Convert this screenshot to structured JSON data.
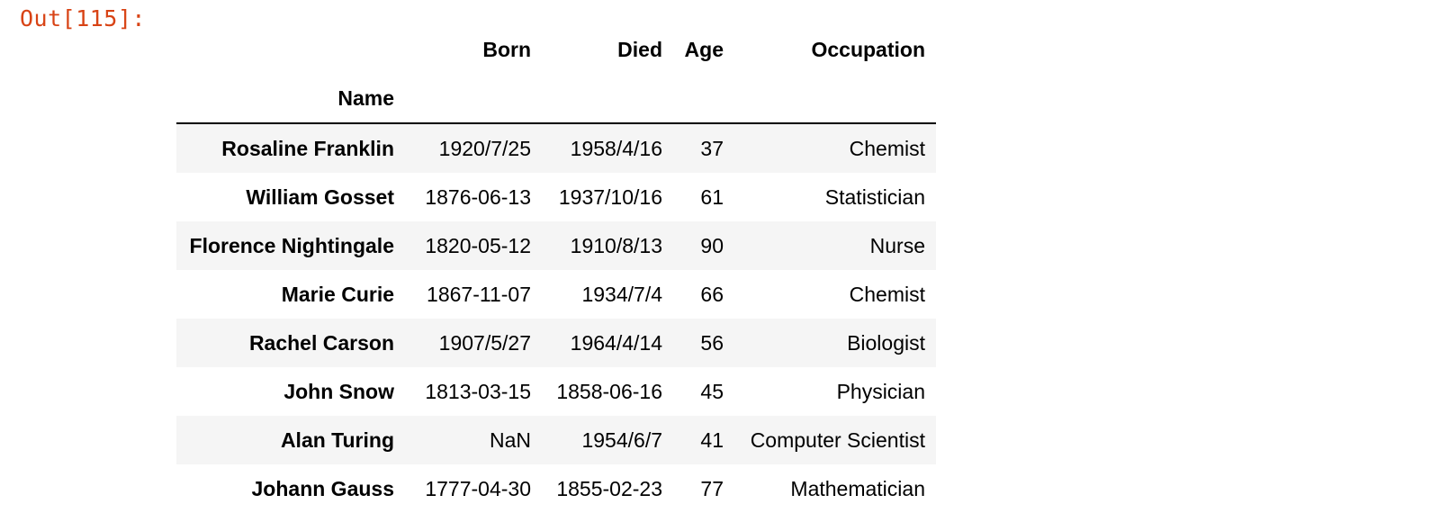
{
  "prompt": "Out[115]:",
  "table": {
    "index_name": "Name",
    "columns": [
      "Born",
      "Died",
      "Age",
      "Occupation"
    ],
    "rows": [
      {
        "name": "Rosaline Franklin",
        "born": "1920/7/25",
        "died": "1958/4/16",
        "age": "37",
        "occupation": "Chemist"
      },
      {
        "name": "William Gosset",
        "born": "1876-06-13",
        "died": "1937/10/16",
        "age": "61",
        "occupation": "Statistician"
      },
      {
        "name": "Florence Nightingale",
        "born": "1820-05-12",
        "died": "1910/8/13",
        "age": "90",
        "occupation": "Nurse"
      },
      {
        "name": "Marie Curie",
        "born": "1867-11-07",
        "died": "1934/7/4",
        "age": "66",
        "occupation": "Chemist"
      },
      {
        "name": "Rachel Carson",
        "born": "1907/5/27",
        "died": "1964/4/14",
        "age": "56",
        "occupation": "Biologist"
      },
      {
        "name": "John Snow",
        "born": "1813-03-15",
        "died": "1858-06-16",
        "age": "45",
        "occupation": "Physician"
      },
      {
        "name": "Alan Turing",
        "born": "NaN",
        "died": "1954/6/7",
        "age": "41",
        "occupation": "Computer Scientist"
      },
      {
        "name": "Johann Gauss",
        "born": "1777-04-30",
        "died": "1855-02-23",
        "age": "77",
        "occupation": "Mathematician"
      }
    ]
  }
}
